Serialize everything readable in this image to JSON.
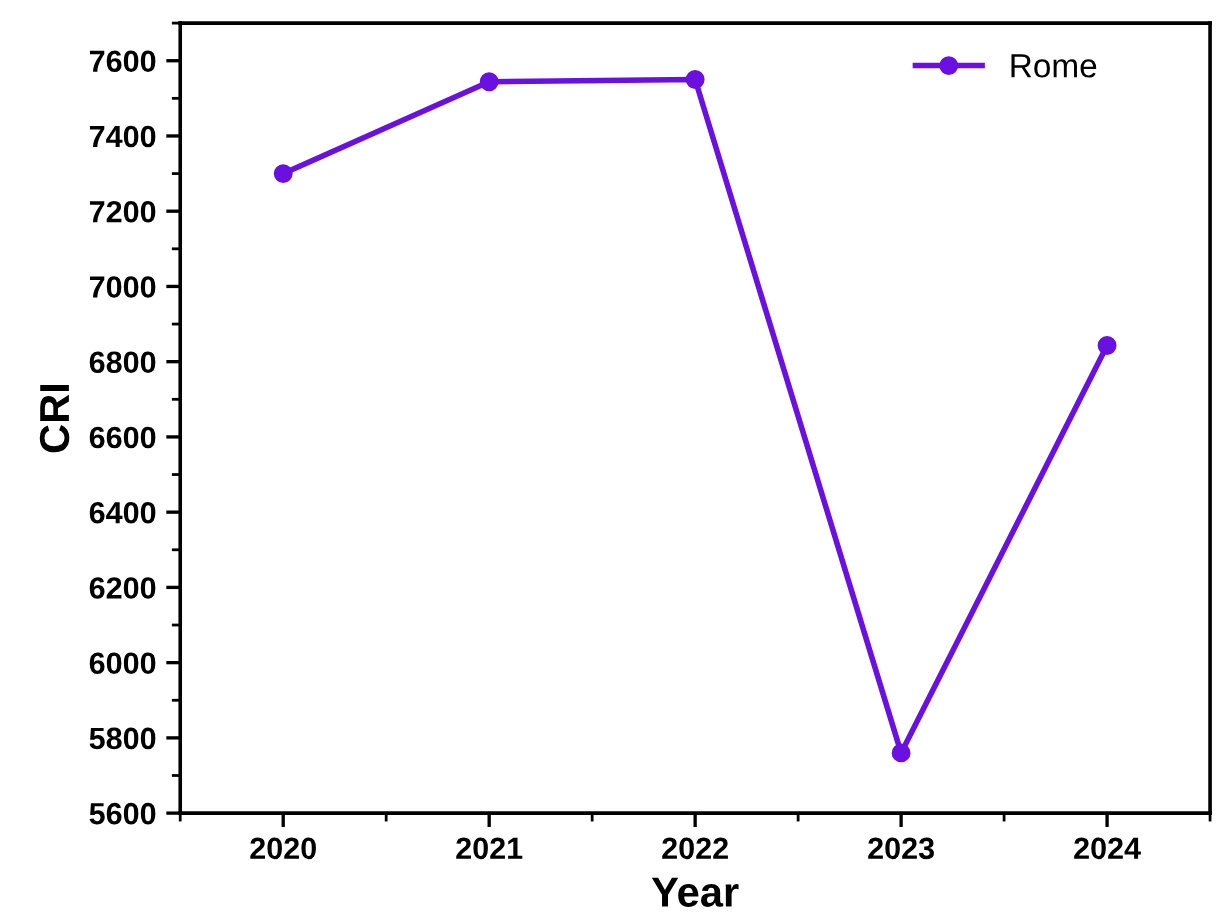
{
  "chart_data": {
    "type": "line",
    "xlabel": "Year",
    "ylabel": "CRI",
    "x": [
      2020,
      2021,
      2022,
      2023,
      2024
    ],
    "series": [
      {
        "name": "Rome",
        "color": "#6a10e0",
        "values": [
          7300,
          7544,
          7550,
          5760,
          6843
        ]
      }
    ],
    "xlim": [
      2019.5,
      2024.5
    ],
    "xticks": [
      2020,
      2021,
      2022,
      2023,
      2024
    ],
    "ylim": [
      5600,
      7700
    ],
    "yticks": [
      5600,
      5800,
      6000,
      6200,
      6400,
      6600,
      6800,
      7000,
      7200,
      7400,
      7600
    ],
    "marker": "circle",
    "line_style": "solid",
    "legend": "top right",
    "grid": false
  }
}
